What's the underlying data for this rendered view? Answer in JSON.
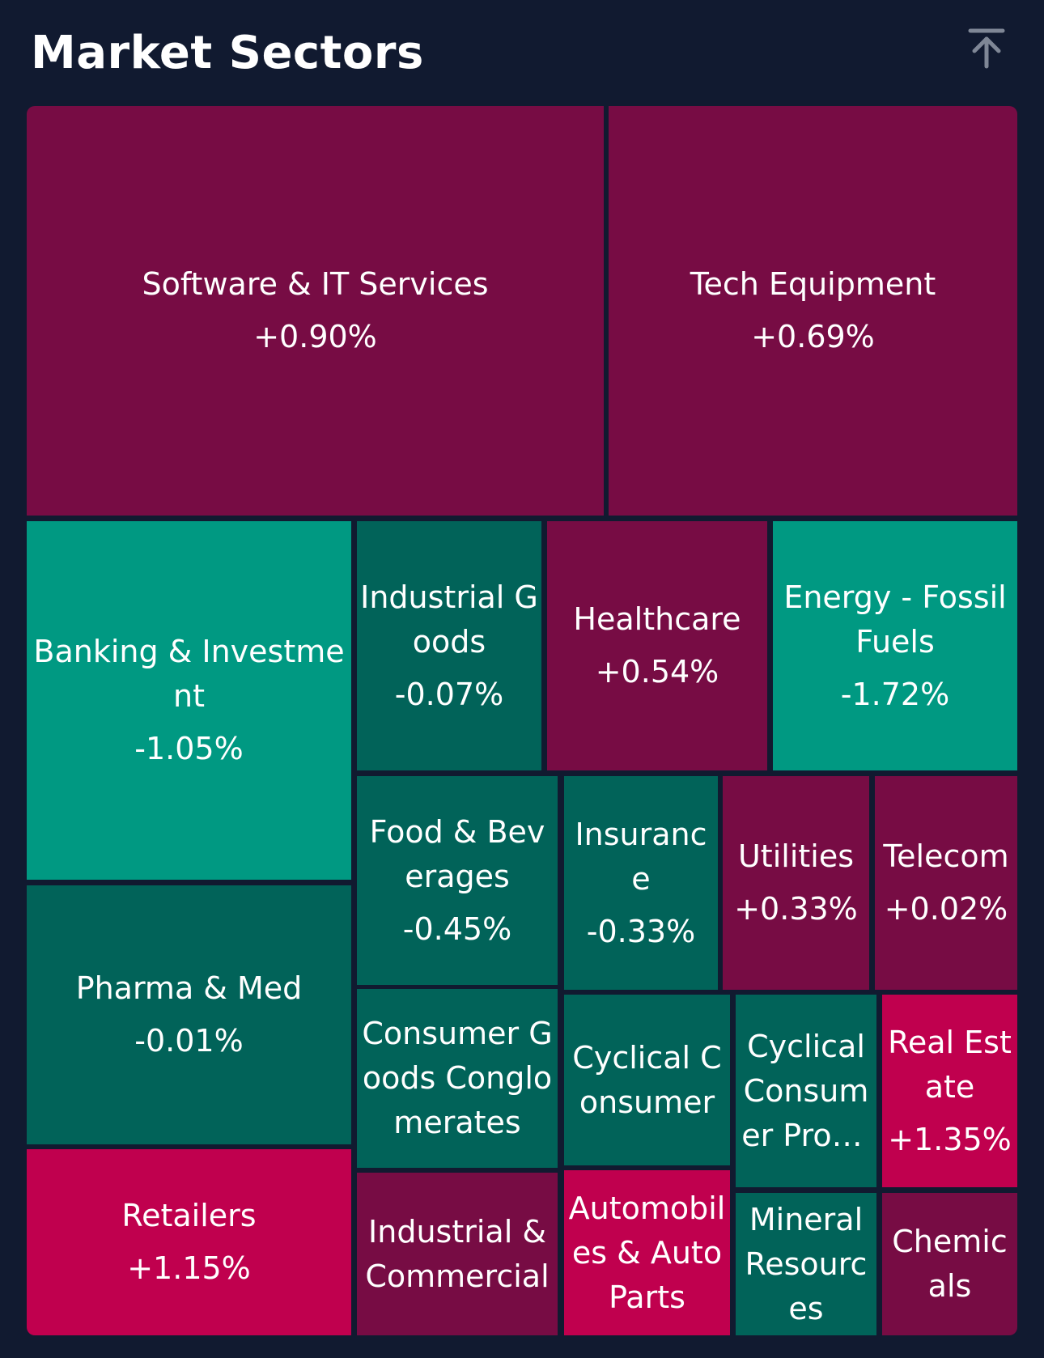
{
  "header": {
    "title": "Market Sectors",
    "scroll_top_icon": "arrow-up-to-line-icon"
  },
  "colors": {
    "background": "#111a30",
    "positive_strong": "#c0004e",
    "positive_weak": "#770c44",
    "negative_strong": "#009982",
    "negative_weak": "#016359"
  },
  "chart_data": {
    "type": "treemap",
    "title": "Market Sectors",
    "value_unit": "% change",
    "sectors": [
      {
        "name": "Software & IT Services",
        "change": "+0.90%",
        "value": 0.9
      },
      {
        "name": "Tech Equipment",
        "change": "+0.69%",
        "value": 0.69
      },
      {
        "name": "Banking & Investment",
        "change": "-1.05%",
        "value": -1.05
      },
      {
        "name": "Industrial Goods",
        "change": "-0.07%",
        "value": -0.07
      },
      {
        "name": "Healthcare",
        "change": "+0.54%",
        "value": 0.54
      },
      {
        "name": "Energy - Fossil Fuels",
        "change": "-1.72%",
        "value": -1.72
      },
      {
        "name": "Food & Beverages",
        "change": "-0.45%",
        "value": -0.45
      },
      {
        "name": "Insurance",
        "change": "-0.33%",
        "value": -0.33
      },
      {
        "name": "Utilities",
        "change": "+0.33%",
        "value": 0.33
      },
      {
        "name": "Telecom",
        "change": "+0.02%",
        "value": 0.02
      },
      {
        "name": "Pharma & Med",
        "change": "-0.01%",
        "value": -0.01
      },
      {
        "name": "Consumer Goods Conglomerates",
        "change": "",
        "value": null,
        "color_class": "negative_weak"
      },
      {
        "name": "Cyclical Consumer",
        "change": "",
        "value": null,
        "color_class": "negative_weak"
      },
      {
        "name": "Cyclical Consumer Products",
        "change": "",
        "value": null,
        "color_class": "negative_weak"
      },
      {
        "name": "Real Estate",
        "change": "+1.35%",
        "value": 1.35
      },
      {
        "name": "Retailers",
        "change": "+1.15%",
        "value": 1.15
      },
      {
        "name": "Industrial & Commercial",
        "change": "",
        "value": null,
        "color_class": "positive_weak"
      },
      {
        "name": "Automobiles & Auto Parts",
        "change": "",
        "value": null,
        "color_class": "positive_strong"
      },
      {
        "name": "Mineral Resources",
        "change": "",
        "value": null,
        "color_class": "negative_weak"
      },
      {
        "name": "Chemicals",
        "change": "",
        "value": null,
        "color_class": "positive_weak"
      }
    ]
  }
}
